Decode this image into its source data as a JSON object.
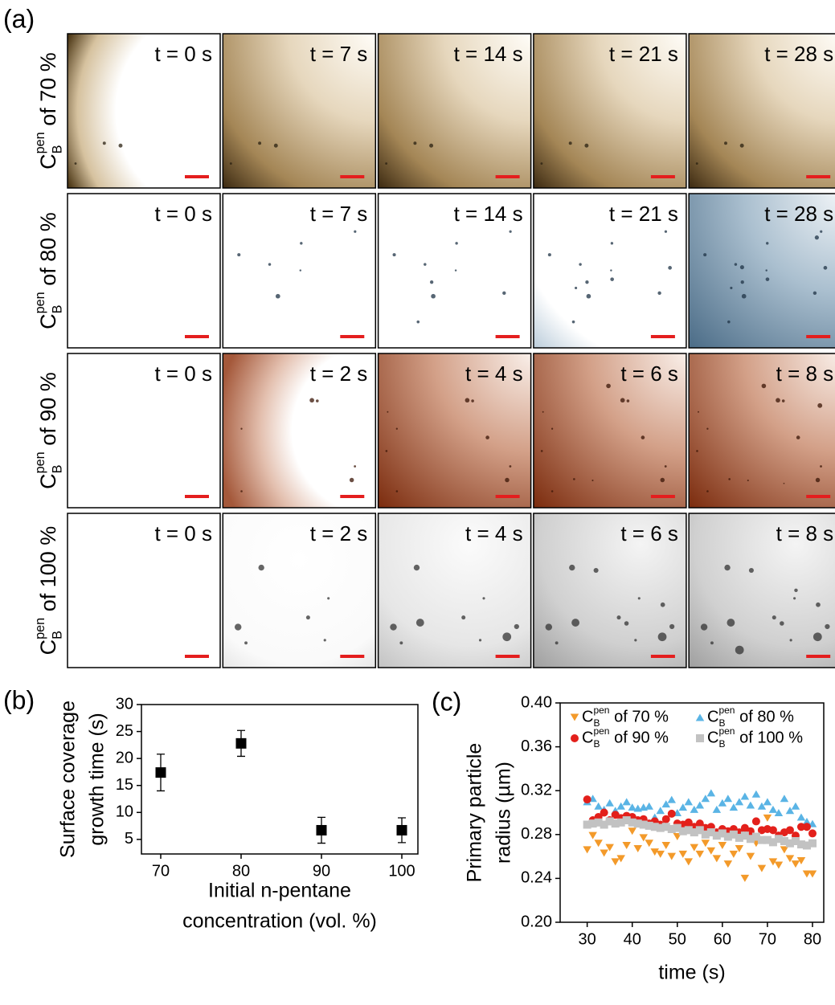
{
  "panel_labels": [
    "(a)",
    "(b)",
    "(c)"
  ],
  "image_grid": {
    "rows": [
      {
        "label": {
          "symbol": "C",
          "sub": "B",
          "sup": "pen",
          "text": "of 70 %"
        },
        "times": [
          "t = 0 s",
          "t = 7 s",
          "t = 14 s",
          "t = 21 s",
          "t = 28 s"
        ]
      },
      {
        "label": {
          "symbol": "C",
          "sub": "B",
          "sup": "pen",
          "text": "of 80 %"
        },
        "times": [
          "t = 0 s",
          "t = 7 s",
          "t = 14 s",
          "t = 21 s",
          "t = 28 s"
        ]
      },
      {
        "label": {
          "symbol": "C",
          "sub": "B",
          "sup": "pen",
          "text": "of 90 %"
        },
        "times": [
          "t = 0 s",
          "t = 2 s",
          "t = 4 s",
          "t = 6 s",
          "t = 8 s"
        ]
      },
      {
        "label": {
          "symbol": "C",
          "sub": "B",
          "sup": "pen",
          "text": "of 100 %"
        },
        "times": [
          "t = 0 s",
          "t = 2 s",
          "t = 4 s",
          "t = 6 s",
          "t = 8 s"
        ]
      }
    ]
  },
  "chart_data": [
    {
      "type": "scatter",
      "x_label": [
        "Initial n-pentane",
        "concentration (vol. %)"
      ],
      "y_label": [
        "Surface coverage",
        "growth time (s)"
      ],
      "x": [
        70,
        80,
        90,
        100
      ],
      "values": [
        17.4,
        22.8,
        6.7,
        6.7
      ],
      "errors": [
        3.4,
        2.4,
        2.4,
        2.3
      ],
      "color": "#000000",
      "marker": "square",
      "xlim": [
        67.6,
        102
      ],
      "xticks": [
        70,
        80,
        90,
        100
      ],
      "ylim": [
        2.3,
        30
      ],
      "yticks": [
        5,
        10,
        15,
        20,
        25,
        30
      ]
    },
    {
      "type": "scatter",
      "x_label": [
        "time (s)"
      ],
      "y_label": [
        "Primary particle",
        "radius (µm)"
      ],
      "x": [
        30,
        31.25,
        32.5,
        33.75,
        35,
        36.25,
        37.5,
        38.75,
        40,
        41.25,
        42.5,
        43.75,
        45,
        46.25,
        47.5,
        48.75,
        50,
        51.25,
        52.5,
        53.75,
        55,
        56.25,
        57.5,
        58.75,
        60,
        61.25,
        62.5,
        63.75,
        65,
        66.25,
        67.5,
        68.75,
        70,
        71.25,
        72.5,
        73.75,
        75,
        76.25,
        77.5,
        78.75,
        80
      ],
      "series": [
        {
          "name": {
            "symbol": "C",
            "sub": "B",
            "sup": "pen",
            "text": "of 70 %"
          },
          "color": "#f39a2a",
          "marker": "triangle-down",
          "values": [
            0.266,
            0.279,
            0.272,
            0.263,
            0.268,
            0.255,
            0.258,
            0.27,
            0.283,
            0.267,
            0.277,
            0.272,
            0.264,
            0.262,
            0.27,
            0.26,
            0.278,
            0.262,
            0.255,
            0.268,
            0.262,
            0.272,
            0.265,
            0.258,
            0.27,
            0.253,
            0.262,
            0.267,
            0.24,
            0.26,
            0.272,
            0.249,
            0.295,
            0.255,
            0.252,
            0.266,
            0.258,
            0.253,
            0.256,
            0.244,
            0.244
          ]
        },
        {
          "name": {
            "symbol": "C",
            "sub": "B",
            "sup": "pen",
            "text": "of 80 %"
          },
          "color": "#5ab4e5",
          "marker": "triangle-up",
          "values": [
            0.31,
            0.313,
            0.306,
            0.303,
            0.309,
            0.302,
            0.306,
            0.31,
            0.305,
            0.304,
            0.305,
            0.306,
            0.296,
            0.302,
            0.308,
            0.312,
            0.3,
            0.305,
            0.31,
            0.303,
            0.307,
            0.313,
            0.318,
            0.303,
            0.309,
            0.313,
            0.305,
            0.31,
            0.315,
            0.307,
            0.317,
            0.306,
            0.31,
            0.303,
            0.3,
            0.313,
            0.302,
            0.306,
            0.296,
            0.292,
            0.29
          ]
        },
        {
          "name": {
            "symbol": "C",
            "sub": "B",
            "sup": "pen",
            "text": "of 90 %"
          },
          "color": "#e3201b",
          "marker": "circle",
          "values": [
            0.312,
            0.293,
            0.296,
            0.3,
            0.293,
            0.298,
            0.295,
            0.297,
            0.296,
            0.293,
            0.294,
            0.29,
            0.292,
            0.289,
            0.294,
            0.299,
            0.29,
            0.289,
            0.291,
            0.287,
            0.29,
            0.286,
            0.287,
            0.282,
            0.285,
            0.283,
            0.285,
            0.282,
            0.286,
            0.283,
            0.292,
            0.284,
            0.285,
            0.284,
            0.279,
            0.282,
            0.284,
            0.279,
            0.287,
            0.287,
            0.281
          ]
        },
        {
          "name": {
            "symbol": "C",
            "sub": "B",
            "sup": "pen",
            "text": "of 100 %"
          },
          "color": "#c2c2c2",
          "marker": "square",
          "values": [
            0.289,
            0.29,
            0.291,
            0.289,
            0.292,
            0.29,
            0.291,
            0.293,
            0.291,
            0.29,
            0.289,
            0.288,
            0.287,
            0.286,
            0.287,
            0.285,
            0.286,
            0.283,
            0.284,
            0.282,
            0.284,
            0.28,
            0.282,
            0.279,
            0.281,
            0.278,
            0.28,
            0.277,
            0.279,
            0.276,
            0.278,
            0.275,
            0.275,
            0.273,
            0.276,
            0.274,
            0.272,
            0.274,
            0.271,
            0.27,
            0.272
          ]
        }
      ],
      "xlim": [
        24,
        82.5
      ],
      "xticks": [
        30,
        40,
        50,
        60,
        70,
        80
      ],
      "ylim": [
        0.2,
        0.4
      ],
      "yticks": [
        {
          "value": 0.2,
          "label": "0.20"
        },
        {
          "value": 0.24,
          "label": "0.24"
        },
        {
          "value": 0.28,
          "label": "0.28"
        },
        {
          "value": 0.32,
          "label": "0.32"
        },
        {
          "value": 0.36,
          "label": "0.36"
        },
        {
          "value": 0.4,
          "label": "0.40"
        }
      ],
      "legend": "top"
    }
  ]
}
